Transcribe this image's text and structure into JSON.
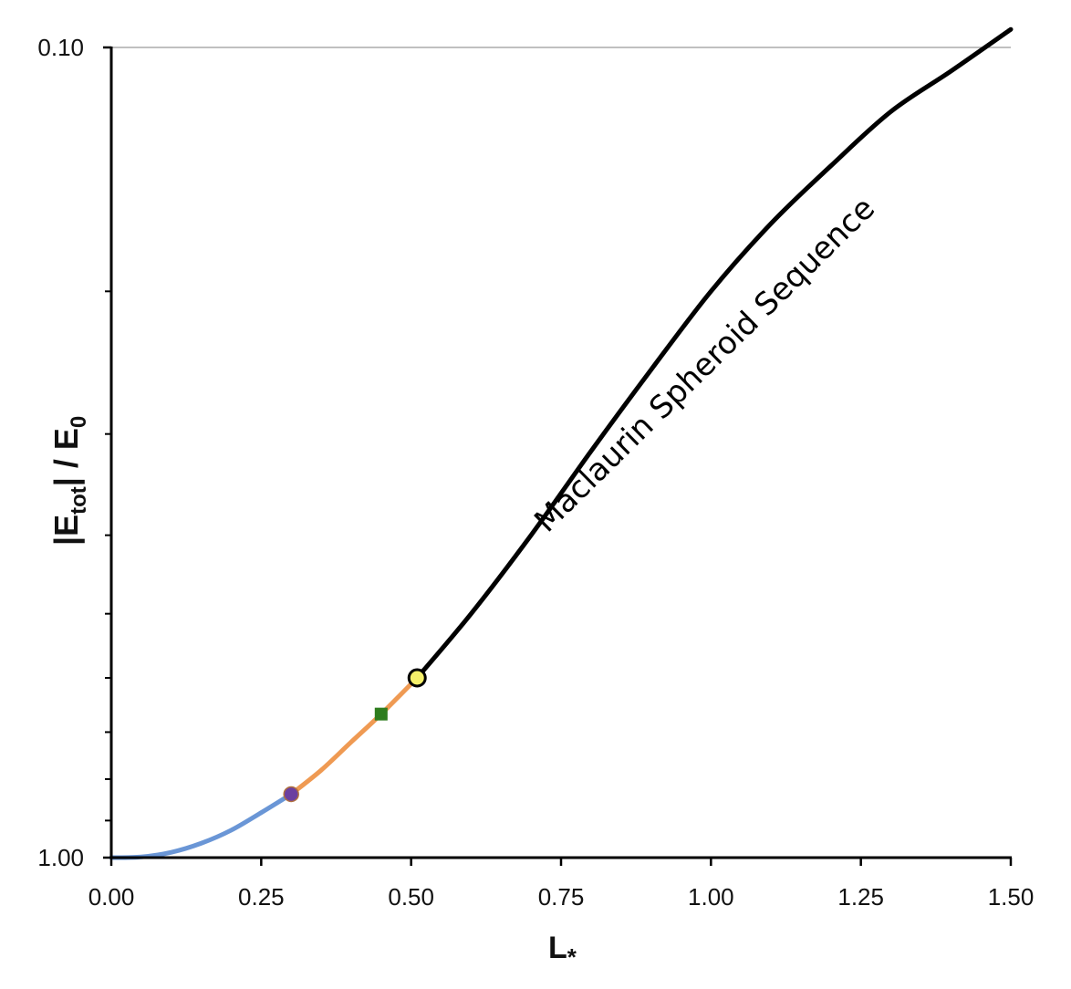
{
  "chart_data": {
    "type": "line",
    "title": "",
    "xlabel": {
      "main": "L",
      "sub": "*"
    },
    "ylabel": {
      "bar1": "|",
      "E1": "E",
      "sub1": "tot",
      "bar2": "|",
      "slash": " / ",
      "E2": "E",
      "sub2": "0"
    },
    "xlim": [
      0.0,
      1.5
    ],
    "ylim_top": 0.1,
    "ylim_bottom": 1.0,
    "y_scale": "log, decreasing downward (1.00 at bottom, 0.10 at top)",
    "x_ticks": [
      "0.00",
      "0.25",
      "0.50",
      "0.75",
      "1.00",
      "1.25",
      "1.50"
    ],
    "y_tick_labels": [
      "1.00",
      "0.10"
    ],
    "y_minor_tick_values": [
      0.9,
      0.8,
      0.7,
      0.6,
      0.5,
      0.4,
      0.3,
      0.2
    ],
    "grid": "top gridline only",
    "annotation": "Maclaurin Spheroid Sequence",
    "series": [
      {
        "color": "#6a96d6",
        "x": [
          0.0,
          0.05,
          0.1,
          0.15,
          0.2,
          0.25,
          0.3
        ],
        "y": [
          1.0,
          0.998,
          0.985,
          0.96,
          0.925,
          0.88,
          0.835
        ]
      },
      {
        "color": "#ef9a53",
        "x": [
          0.3,
          0.35,
          0.4,
          0.45,
          0.51
        ],
        "y": [
          0.835,
          0.78,
          0.72,
          0.665,
          0.6
        ]
      },
      {
        "color": "#000000",
        "x": [
          0.51,
          0.6,
          0.7,
          0.8,
          0.9,
          1.0,
          1.1,
          1.2,
          1.3,
          1.4,
          1.5
        ],
        "y": [
          0.6,
          0.5,
          0.4,
          0.315,
          0.25,
          0.2,
          0.165,
          0.14,
          0.12,
          0.107,
          0.095
        ]
      }
    ],
    "markers": [
      {
        "name": "purple-circle-marker",
        "shape": "circle",
        "color": "#6b3fa0",
        "x": 0.3,
        "y": 0.835
      },
      {
        "name": "green-square-marker",
        "shape": "square",
        "color": "#2e7d1e",
        "x": 0.45,
        "y": 0.665
      },
      {
        "name": "yellow-circle-marker",
        "shape": "circle",
        "color": "#f5f06a",
        "x": 0.51,
        "y": 0.6
      }
    ]
  }
}
